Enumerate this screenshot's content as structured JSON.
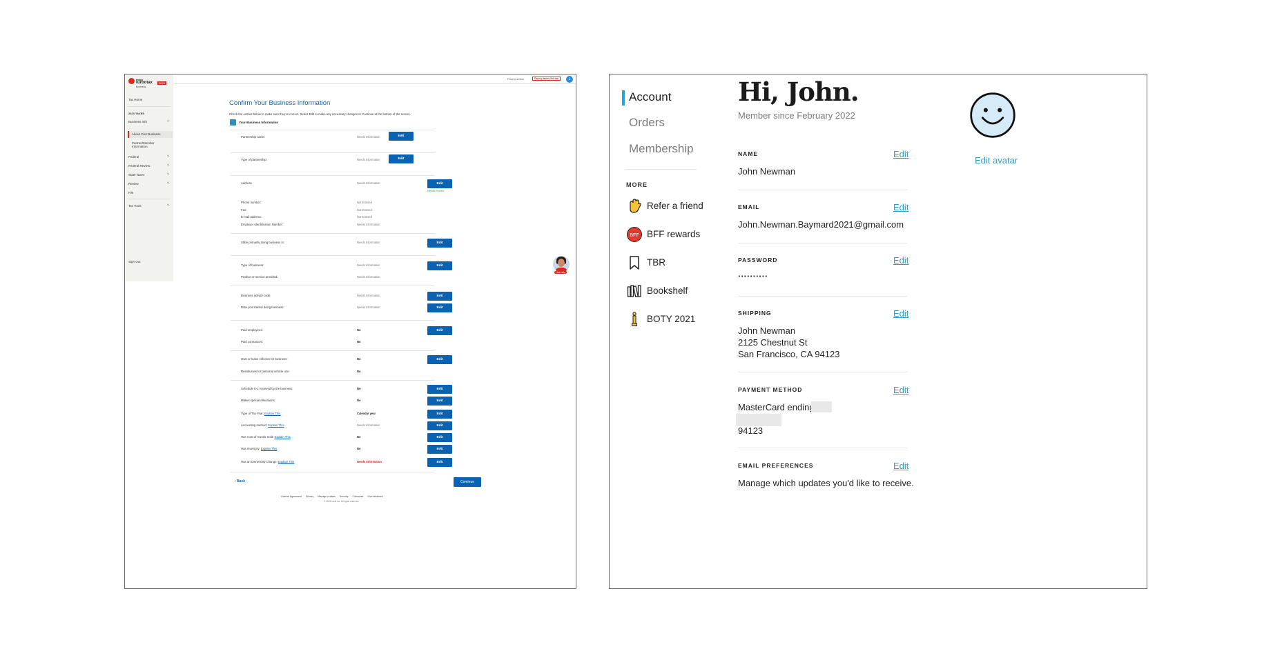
{
  "turbotax": {
    "logo": {
      "line1": "intuit",
      "line2": "turbotax",
      "badge": "2023",
      "line3": "Business"
    },
    "sidebar": {
      "tax_home": "Tax Home",
      "year": "2023 TAXES",
      "items": [
        {
          "label": "Business Info"
        },
        {
          "label": "About Your Business"
        },
        {
          "label": "Partner/Member Information"
        },
        {
          "label": "Federal"
        },
        {
          "label": "Federal Review"
        },
        {
          "label": "State Taxes"
        },
        {
          "label": "Review"
        },
        {
          "label": "File"
        },
        {
          "label": "Tax Tools"
        },
        {
          "label": "Sign Out"
        }
      ]
    },
    "topbar": {
      "price_preview": "Price preview",
      "do_my_taxes": "Do my taxes for me",
      "avatar_initial": "J"
    },
    "title": "Confirm Your Business Information",
    "intro": "Check the entries below to make sure they're correct. Select Edit to make any necessary changes or Continue at the bottom of the screen.",
    "section_title": "Your Business Information",
    "edit_label": "Edit",
    "needs_review": "Needs Review",
    "rows": [
      {
        "label": "Partnership name:",
        "value": "Needs Information"
      },
      {
        "label": "Type of partnership:",
        "value": "Needs Information"
      },
      {
        "label": "Address",
        "value": "Needs Information"
      },
      {
        "label": "Phone number:",
        "value": "Not Entered"
      },
      {
        "label": "Fax:",
        "value": "Not Entered"
      },
      {
        "label": "E-mail address:",
        "value": "Not Entered"
      },
      {
        "label": "Employer Identification Number:",
        "value": "Needs Information"
      },
      {
        "label": "State primarily doing business in:",
        "value": "Needs Information"
      },
      {
        "label": "Type of business:",
        "value": "Needs Information"
      },
      {
        "label": "Product or service provided:",
        "value": "Needs Information"
      },
      {
        "label": "Business activity code:",
        "value": "Needs Information"
      },
      {
        "label": "Date you started doing business:",
        "value": "Needs Information"
      },
      {
        "label": "Paid employees:",
        "value": "No"
      },
      {
        "label": "Paid contractors:",
        "value": "No"
      },
      {
        "label": "Own or lease vehicles for business:",
        "value": "No"
      },
      {
        "label": "Reimburses for personal vehicle use:",
        "value": "No"
      },
      {
        "label": "Schedule K-1 received by the business:",
        "value": "No"
      },
      {
        "label": "Makes special allocations:",
        "value": "No"
      },
      {
        "label": "Type of Tax Year:",
        "link": "Explain This",
        "value": "Calendar year"
      },
      {
        "label": "Accounting method:",
        "link": "Explain This",
        "value": "Needs Information"
      },
      {
        "label": "Has Cost of Goods Sold:",
        "link": "Explain This",
        "value": "No"
      },
      {
        "label": "Has Inventory:",
        "link": "Explain This",
        "value": "No"
      },
      {
        "label": "Has an Ownership Change:",
        "link": "Explain This",
        "value": "Needs Information"
      }
    ],
    "back": "Back",
    "continue": "Continue",
    "footer_links": [
      "License Agreement",
      "Privacy",
      "Manage cookies",
      "Security",
      "Cobrowse",
      "Give feedback"
    ],
    "copyright": "© 2024 Intuit Inc. All rights reserved.",
    "live_help": "Live help"
  },
  "account": {
    "nav": [
      {
        "label": "Account",
        "active": true
      },
      {
        "label": "Orders",
        "active": false
      },
      {
        "label": "Membership",
        "active": false
      }
    ],
    "more_heading": "MORE",
    "more_items": [
      {
        "label": "Refer a friend",
        "icon": "waving-hand-icon"
      },
      {
        "label": "BFF rewards",
        "icon": "bff-badge-icon",
        "badge_text": "BFF"
      },
      {
        "label": "TBR",
        "icon": "bookmark-icon"
      },
      {
        "label": "Bookshelf",
        "icon": "bookshelf-icon"
      },
      {
        "label": "BOTY 2021",
        "icon": "trophy-icon"
      }
    ],
    "greeting": "Hi, John.",
    "member_since": "Member since February 2022",
    "edit_avatar": "Edit avatar",
    "edit_label": "Edit",
    "sections": {
      "name": {
        "heading": "NAME",
        "value": "John Newman"
      },
      "email": {
        "heading": "EMAIL",
        "value": "John.Newman.Baymard2021@gmail.com"
      },
      "password": {
        "heading": "PASSWORD",
        "value": "··········"
      },
      "shipping": {
        "heading": "SHIPPING",
        "line1": "John Newman",
        "line2": "2125 Chestnut St",
        "line3": "San Francisco, CA 94123"
      },
      "payment": {
        "heading": "PAYMENT METHOD",
        "line1": "MasterCard ending in",
        "line3": "94123"
      },
      "email_prefs": {
        "heading": "EMAIL PREFERENCES",
        "value": "Manage which updates you'd like to receive."
      }
    },
    "colors": {
      "accent": "#2ba3d6",
      "link": "#2e9cc9",
      "avatar_bg": "#d6ebf7"
    }
  }
}
